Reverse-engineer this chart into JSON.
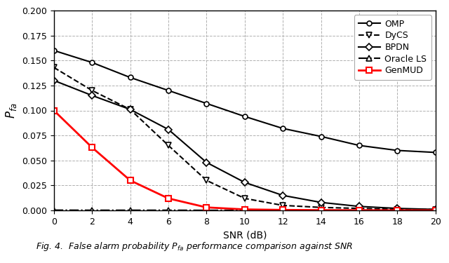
{
  "snr": [
    0,
    2,
    4,
    6,
    8,
    10,
    12,
    14,
    16,
    18,
    20
  ],
  "OMP": [
    0.16,
    0.148,
    0.133,
    0.12,
    0.107,
    0.094,
    0.082,
    0.074,
    0.065,
    0.06,
    0.058
  ],
  "DyCS": [
    0.143,
    0.12,
    0.101,
    0.065,
    0.03,
    0.012,
    0.005,
    0.003,
    0.002,
    0.001,
    0.001
  ],
  "BPDN": [
    0.13,
    0.115,
    0.101,
    0.081,
    0.048,
    0.028,
    0.015,
    0.008,
    0.004,
    0.002,
    0.001
  ],
  "OracleLS": [
    0.0003,
    0.0002,
    0.0002,
    0.0002,
    0.0001,
    0.0001,
    0.0001,
    0.0001,
    0.0001,
    0.0001,
    0.0001
  ],
  "GenMUD": [
    0.1,
    0.063,
    0.03,
    0.012,
    0.003,
    0.001,
    0.0005,
    0.0003,
    0.0002,
    0.0001,
    0.0001
  ],
  "ylim": [
    0.0,
    0.2
  ],
  "yticks": [
    0.0,
    0.025,
    0.05,
    0.075,
    0.1,
    0.125,
    0.15,
    0.175,
    0.2
  ],
  "xlabel": "SNR (dB)",
  "ylabel": "$P_{fa}$",
  "grid_color": "#b0b0b0",
  "line_color_black": "#000000",
  "line_color_red": "#ff0000",
  "caption": "Fig. 4.  False alarm probability $P_{fa}$ performance comparison against SNR",
  "legend_labels": [
    "OMP",
    "DyCS",
    "BPDN",
    "Oracle LS",
    "GenMUD"
  ]
}
